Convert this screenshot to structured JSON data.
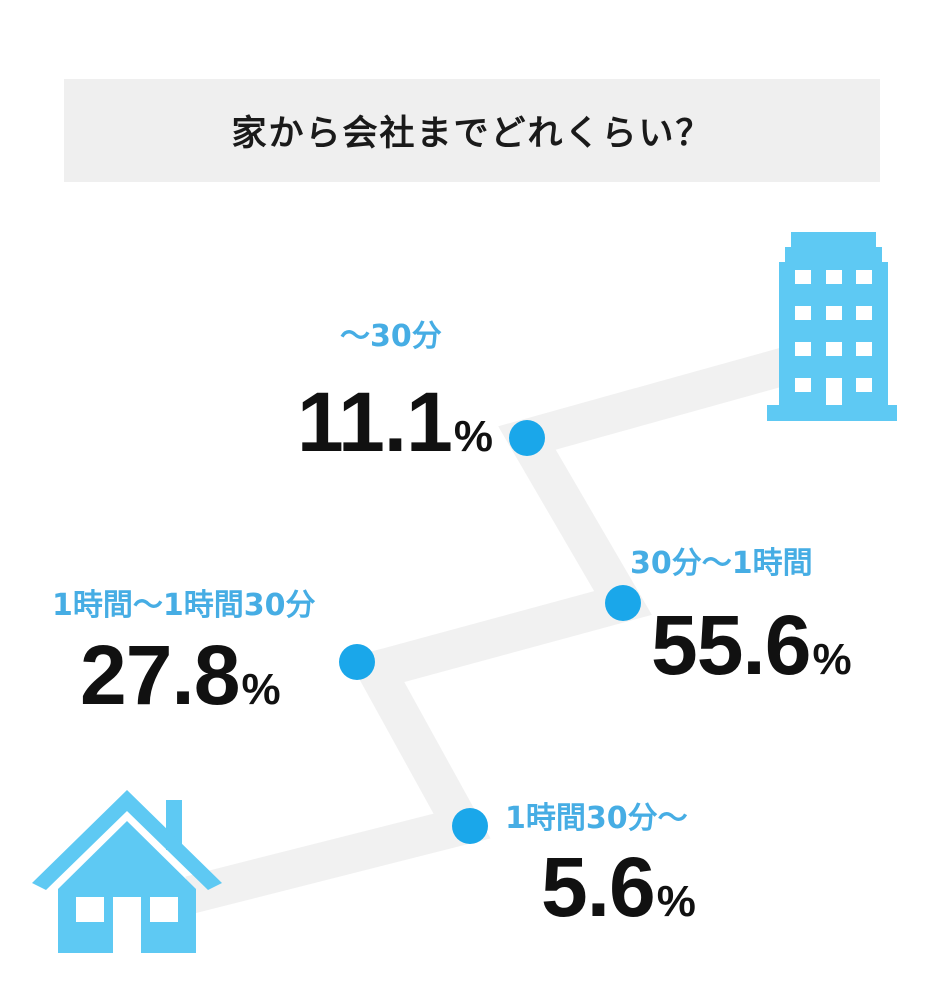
{
  "title": "家から会社までどれくらい？",
  "chart_data": {
    "type": "path-infographic",
    "title": "家から会社までどれくらい？",
    "unit": "%",
    "categories": [
      "～30分",
      "30分～1時間",
      "1時間～1時間30分",
      "1時間30分～"
    ],
    "values": [
      11.1,
      55.6,
      27.8,
      5.6
    ],
    "value_labels": [
      "11.1",
      "55.6",
      "27.8",
      "5.6"
    ],
    "colors": {
      "accent": "#46ade4",
      "dot": "#1aa7ea",
      "path": "#f1f1f1",
      "icon": "#5ec9f3",
      "text": "#111111"
    }
  },
  "icons": {
    "start": "house-icon",
    "end": "office-building-icon"
  }
}
